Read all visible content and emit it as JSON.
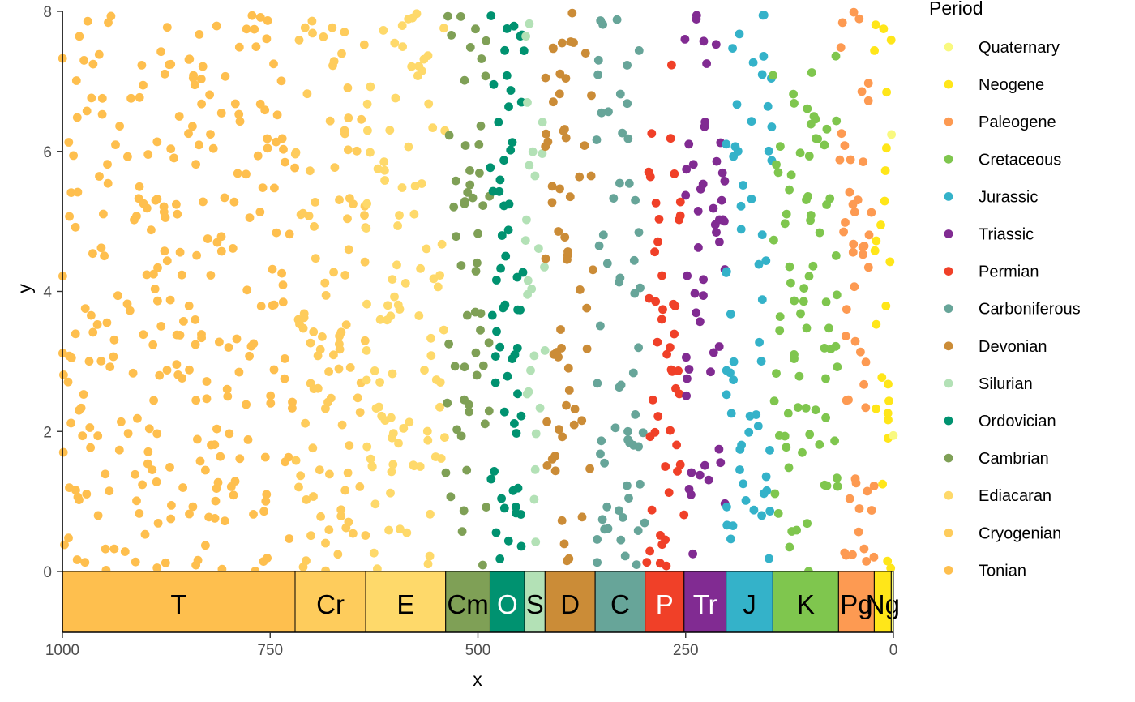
{
  "chart_data": {
    "type": "scatter",
    "title": "",
    "xlabel": "x",
    "ylabel": "y",
    "xlim": [
      1000,
      0
    ],
    "ylim": [
      -0.9,
      8
    ],
    "x_reversed": true,
    "x_ticks": [
      1000,
      750,
      500,
      250,
      0
    ],
    "x_tick_labels": [
      "1000",
      "750",
      "500",
      "250",
      "0"
    ],
    "y_ticks": [
      0,
      2,
      4,
      6,
      8
    ],
    "y_tick_labels": [
      "0",
      "2",
      "4",
      "6",
      "8"
    ],
    "grid": false,
    "legend": {
      "title": "Period",
      "position": "right"
    },
    "periods": [
      {
        "name": "Quaternary",
        "abbr": "",
        "start": 2.58,
        "end": 0,
        "color": "#F9F97F",
        "label_color": "#000000"
      },
      {
        "name": "Neogene",
        "abbr": "Ng",
        "start": 23.03,
        "end": 2.58,
        "color": "#FFE619",
        "label_color": "#000000"
      },
      {
        "name": "Paleogene",
        "abbr": "Pg",
        "start": 66,
        "end": 23.03,
        "color": "#FD9A52",
        "label_color": "#000000"
      },
      {
        "name": "Cretaceous",
        "abbr": "K",
        "start": 145,
        "end": 66,
        "color": "#7FC64E",
        "label_color": "#000000"
      },
      {
        "name": "Jurassic",
        "abbr": "J",
        "start": 201.3,
        "end": 145,
        "color": "#34B2C9",
        "label_color": "#000000"
      },
      {
        "name": "Triassic",
        "abbr": "Tr",
        "start": 251.9,
        "end": 201.3,
        "color": "#812B92",
        "label_color": "#FFFFFF"
      },
      {
        "name": "Permian",
        "abbr": "P",
        "start": 298.9,
        "end": 251.9,
        "color": "#F04028",
        "label_color": "#FFFFFF"
      },
      {
        "name": "Carboniferous",
        "abbr": "C",
        "start": 358.9,
        "end": 298.9,
        "color": "#67A599",
        "label_color": "#000000"
      },
      {
        "name": "Devonian",
        "abbr": "D",
        "start": 419.2,
        "end": 358.9,
        "color": "#CB8C37",
        "label_color": "#000000"
      },
      {
        "name": "Silurian",
        "abbr": "S",
        "start": 443.8,
        "end": 419.2,
        "color": "#B3E1B6",
        "label_color": "#000000"
      },
      {
        "name": "Ordovician",
        "abbr": "O",
        "start": 485.4,
        "end": 443.8,
        "color": "#009270",
        "label_color": "#FFFFFF"
      },
      {
        "name": "Cambrian",
        "abbr": "Cm",
        "start": 538.8,
        "end": 485.4,
        "color": "#7FA056",
        "label_color": "#000000"
      },
      {
        "name": "Ediacaran",
        "abbr": "E",
        "start": 635,
        "end": 538.8,
        "color": "#FED96A",
        "label_color": "#000000"
      },
      {
        "name": "Cryogenian",
        "abbr": "Cr",
        "start": 720,
        "end": 635,
        "color": "#FECC5C",
        "label_color": "#000000"
      },
      {
        "name": "Tonian",
        "abbr": "T",
        "start": 1000,
        "end": 720,
        "color": "#FEBF4E",
        "label_color": "#000000"
      }
    ],
    "point_counts": {
      "Quaternary": 2,
      "Neogene": 24,
      "Paleogene": 50,
      "Cretaceous": 80,
      "Jurassic": 58,
      "Triassic": 52,
      "Permian": 48,
      "Carboniferous": 60,
      "Devonian": 60,
      "Silurian": 25,
      "Ordovician": 60,
      "Cambrian": 55,
      "Ediacaran": 100,
      "Cryogenian": 100,
      "Tonian": 280
    },
    "points_note": "Uniform random scatter of points within each period's x-range, y in [0, 8]"
  }
}
